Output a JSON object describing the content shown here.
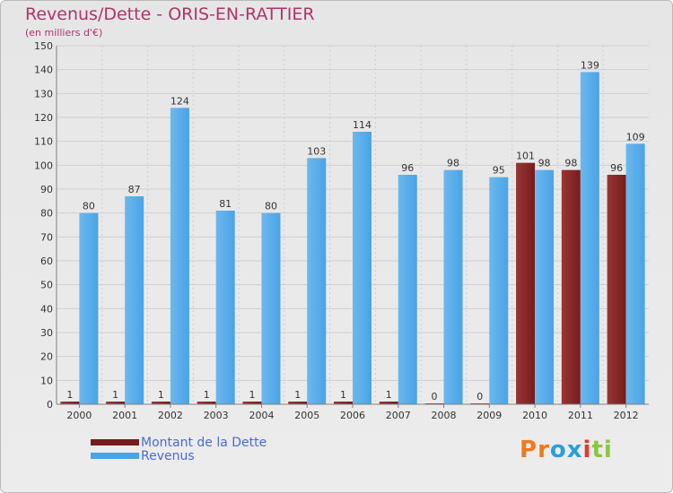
{
  "header": {
    "title": "Revenus/Dette - ORIS-EN-RATTIER",
    "subtitle": "(en milliers d'€)"
  },
  "legend": {
    "debt_label": "Montant de la Dette",
    "revenue_label": "Revenus"
  },
  "brand": {
    "letters": [
      "P",
      "r",
      "o",
      "x",
      "i",
      "t",
      "i"
    ],
    "colors": [
      "#ef7a1a",
      "#ef7a1a",
      "#2a9fd8",
      "#2a9fd8",
      "#e33a2c",
      "#8cc63e",
      "#8cc63e"
    ]
  },
  "colors": {
    "debt": "#761c1c",
    "debt_highlight": "#9a3535",
    "revenue": "#4aa3e6",
    "revenue_highlight": "#6bb8ee",
    "grid": "#cfcfcf",
    "axis": "#808080",
    "text": "#333333"
  },
  "chart_data": {
    "type": "bar",
    "categories": [
      "2000",
      "2001",
      "2002",
      "2003",
      "2004",
      "2005",
      "2006",
      "2007",
      "2008",
      "2009",
      "2010",
      "2011",
      "2012"
    ],
    "series": [
      {
        "name": "Montant de la Dette",
        "values": [
          1,
          1,
          1,
          1,
          1,
          1,
          1,
          1,
          0,
          0,
          101,
          98,
          96
        ]
      },
      {
        "name": "Revenus",
        "values": [
          80,
          87,
          124,
          81,
          80,
          103,
          114,
          96,
          98,
          95,
          98,
          139,
          109
        ]
      }
    ],
    "title": "Revenus/Dette - ORIS-EN-RATTIER",
    "ylabel": "(en milliers d'€)",
    "ylim": [
      0,
      150
    ],
    "yticks": [
      0,
      10,
      20,
      30,
      40,
      50,
      60,
      70,
      80,
      90,
      100,
      110,
      120,
      130,
      140,
      150
    ],
    "grid": true,
    "legend": "bottom-left"
  }
}
